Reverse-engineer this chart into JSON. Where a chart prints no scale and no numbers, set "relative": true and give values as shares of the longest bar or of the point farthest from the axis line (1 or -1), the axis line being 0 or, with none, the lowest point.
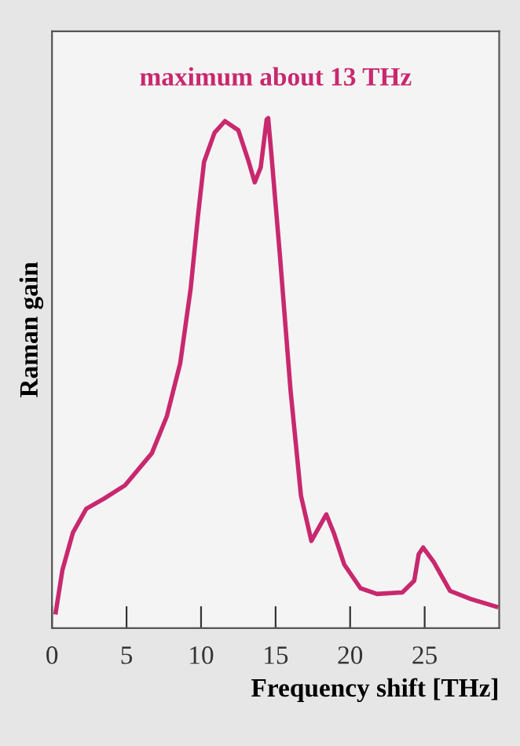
{
  "chart_data": {
    "type": "line",
    "relative": true,
    "xlabel": "Frequency shift [THz]",
    "ylabel": "Raman gain",
    "annotations": [
      "maximum about 13 THz"
    ],
    "xlim": [
      0,
      30
    ],
    "xticks": [
      0,
      5,
      10,
      15,
      20,
      25
    ],
    "grid": false,
    "legend": false,
    "marker": "none",
    "line_style": "solid",
    "x": [
      0.25,
      0.7,
      1.4,
      2.3,
      3.5,
      4.9,
      6.7,
      7.7,
      8.6,
      9.3,
      9.8,
      10.2,
      10.9,
      11.6,
      12.5,
      13.2,
      13.6,
      14.0,
      14.4,
      14.5,
      14.7,
      15.3,
      16.0,
      16.7,
      17.4,
      17.9,
      18.4,
      18.9,
      19.6,
      20.7,
      21.8,
      23.5,
      24.3,
      24.6,
      24.9,
      25.6,
      26.7,
      28.1,
      29.8
    ],
    "series": [
      {
        "color": "#c8286e",
        "values": [
          0.031,
          0.114,
          0.187,
          0.234,
          0.254,
          0.28,
          0.343,
          0.415,
          0.519,
          0.665,
          0.81,
          0.914,
          0.971,
          0.994,
          0.976,
          0.914,
          0.874,
          0.903,
          0.997,
          1.0,
          0.935,
          0.727,
          0.467,
          0.26,
          0.171,
          0.197,
          0.223,
          0.187,
          0.125,
          0.078,
          0.067,
          0.07,
          0.093,
          0.145,
          0.158,
          0.13,
          0.073,
          0.057,
          0.042
        ]
      }
    ]
  }
}
